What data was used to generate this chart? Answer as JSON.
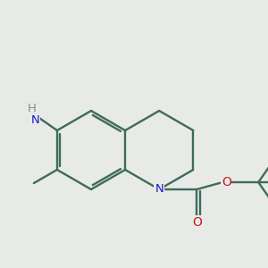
{
  "bg_color": "#e8eae8",
  "bond_color": "#3d6b5a",
  "n_color": "#1a1acc",
  "o_color": "#cc1a1a",
  "h_color": "#888888",
  "lw": 1.7,
  "figsize": [
    3.0,
    3.0
  ],
  "dpi": 100,
  "R": 0.44,
  "blx": 1.02,
  "bly": 1.62,
  "xlim": [
    0.0,
    3.0
  ],
  "ylim": [
    0.6,
    3.0
  ]
}
